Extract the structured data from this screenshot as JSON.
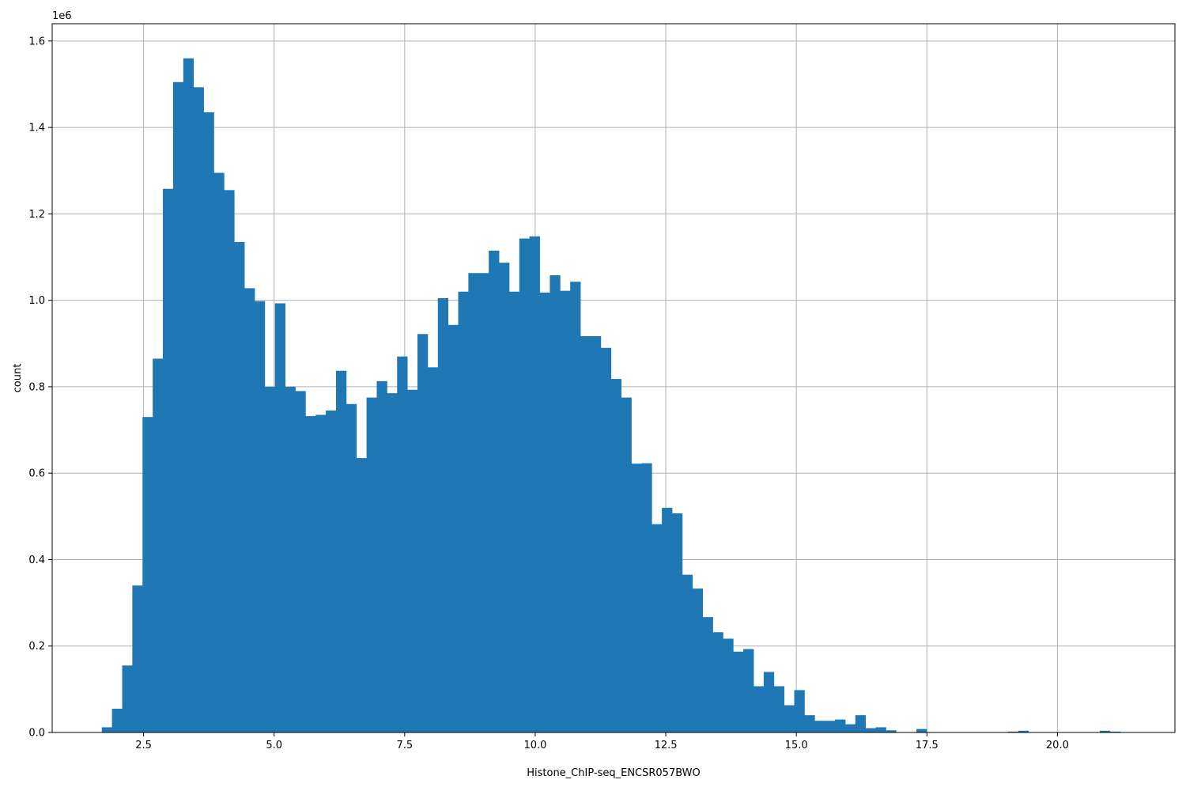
{
  "chart_data": {
    "type": "bar",
    "title": "",
    "xlabel": "Histone_ChIP-seq_ENCSR057BWO",
    "ylabel": "count",
    "y_scale_label": "1e6",
    "xlim": [
      0.75,
      22.25
    ],
    "ylim": [
      0,
      1640000
    ],
    "grid": true,
    "bar_color": "#1f77b4",
    "x_ticks": [
      2.5,
      5.0,
      7.5,
      10.0,
      12.5,
      15.0,
      17.5,
      20.0
    ],
    "x_tick_labels": [
      "2.5",
      "5.0",
      "7.5",
      "10.0",
      "12.5",
      "15.0",
      "17.5",
      "20.0"
    ],
    "y_ticks": [
      0,
      200000,
      400000,
      600000,
      800000,
      1000000,
      1200000,
      1400000,
      1600000
    ],
    "y_tick_labels": [
      "0.0",
      "0.2",
      "0.4",
      "0.6",
      "0.8",
      "1.0",
      "1.2",
      "1.4",
      "1.6"
    ],
    "bin_start": 1.7,
    "bin_width": 0.195,
    "values": [
      12000,
      55000,
      155000,
      340000,
      730000,
      865000,
      1258000,
      1505000,
      1560000,
      1493000,
      1435000,
      1295000,
      1255000,
      1135000,
      1028000,
      998000,
      800000,
      993000,
      800000,
      790000,
      732000,
      735000,
      745000,
      837000,
      760000,
      635000,
      775000,
      813000,
      785000,
      870000,
      793000,
      922000,
      845000,
      1005000,
      943000,
      1020000,
      1063000,
      1063000,
      1115000,
      1087000,
      1020000,
      1143000,
      1148000,
      1018000,
      1058000,
      1022000,
      1043000,
      917000,
      917000,
      890000,
      818000,
      775000,
      622000,
      623000,
      482000,
      520000,
      507000,
      365000,
      333000,
      267000,
      232000,
      217000,
      187000,
      193000,
      107000,
      140000,
      107000,
      63000,
      98000,
      40000,
      27000,
      27000,
      30000,
      19000,
      40000,
      10000,
      12000,
      5000,
      0,
      0,
      8000,
      0,
      0,
      0,
      0,
      0,
      0,
      0,
      0,
      2000,
      4000,
      0,
      0,
      0,
      0,
      0,
      0,
      0,
      4000,
      2000
    ]
  }
}
